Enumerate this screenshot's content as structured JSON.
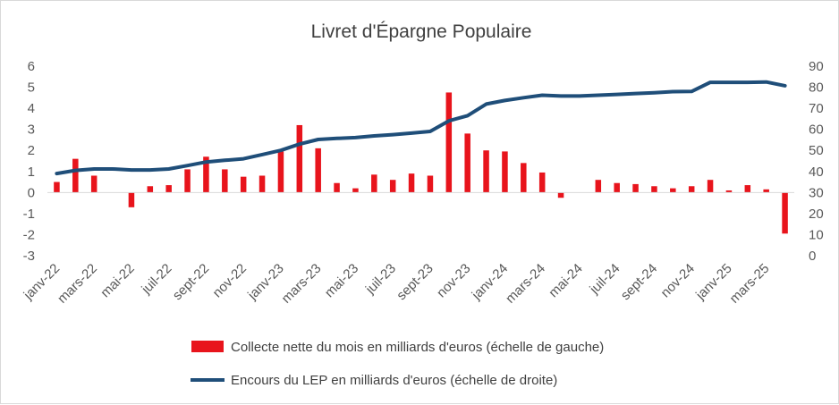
{
  "chart_data": {
    "type": "bar+line",
    "title": "Livret d'Épargne Populaire",
    "categories": [
      "janv-22",
      "févr-22",
      "mars-22",
      "avr-22",
      "mai-22",
      "juin-22",
      "juil-22",
      "août-22",
      "sept-22",
      "oct-22",
      "nov-22",
      "déc-22",
      "janv-23",
      "févr-23",
      "mars-23",
      "avr-23",
      "mai-23",
      "juin-23",
      "juil-23",
      "août-23",
      "sept-23",
      "oct-23",
      "nov-23",
      "déc-23",
      "janv-24",
      "févr-24",
      "mars-24",
      "avr-24",
      "mai-24",
      "juin-24",
      "juil-24",
      "août-24",
      "sept-24",
      "oct-24",
      "nov-24",
      "déc-24",
      "janv-25",
      "févr-25",
      "mars-25",
      "avr-25"
    ],
    "x_tick_labels": [
      "janv-22",
      "mars-22",
      "mai-22",
      "juil-22",
      "sept-22",
      "nov-22",
      "janv-23",
      "mars-23",
      "mai-23",
      "juil-23",
      "sept-23",
      "nov-23",
      "janv-24",
      "mars-24",
      "mai-24",
      "juil-24",
      "sept-24",
      "nov-24",
      "janv-25",
      "mars-25"
    ],
    "series": [
      {
        "name": "Collecte nette du mois en milliards d'euros (échelle de gauche)",
        "type": "bar",
        "axis": "left",
        "color": "#e8141c",
        "values": [
          0.5,
          1.6,
          0.8,
          0.0,
          -0.7,
          0.3,
          0.35,
          1.1,
          1.7,
          1.1,
          0.75,
          0.8,
          1.95,
          3.2,
          2.1,
          0.45,
          0.2,
          0.85,
          0.6,
          0.9,
          0.8,
          4.75,
          2.8,
          2.0,
          1.95,
          1.4,
          0.95,
          -0.25,
          0.0,
          0.6,
          0.45,
          0.4,
          0.3,
          0.2,
          0.3,
          0.6,
          0.1,
          0.35,
          0.15,
          -1.95
        ]
      },
      {
        "name": "Encours du LEP en milliards d'euros (échelle de droite)",
        "type": "line",
        "axis": "right",
        "color": "#1f4e79",
        "values": [
          39,
          40.5,
          41.2,
          41.2,
          40.7,
          40.7,
          41.2,
          42.8,
          44.5,
          45.3,
          46,
          48,
          50,
          53,
          55.2,
          55.7,
          56.1,
          56.9,
          57.5,
          58.2,
          59,
          64,
          66.5,
          72,
          73.7,
          75,
          76.2,
          75.8,
          75.8,
          76.2,
          76.6,
          77,
          77.4,
          77.9,
          78,
          82.3,
          82.3,
          82.3,
          82.5,
          80.7
        ]
      }
    ],
    "y_left": {
      "ticks": [
        "6",
        "5",
        "4",
        "3",
        "2",
        "1",
        "0",
        "-1",
        "-2",
        "-3"
      ],
      "ylim": [
        -3,
        6
      ]
    },
    "y_right": {
      "ticks": [
        "90",
        "80",
        "70",
        "60",
        "50",
        "40",
        "30",
        "20",
        "10",
        "0"
      ],
      "ylim": [
        0,
        90
      ]
    },
    "grid": false,
    "legend_position": "bottom"
  }
}
